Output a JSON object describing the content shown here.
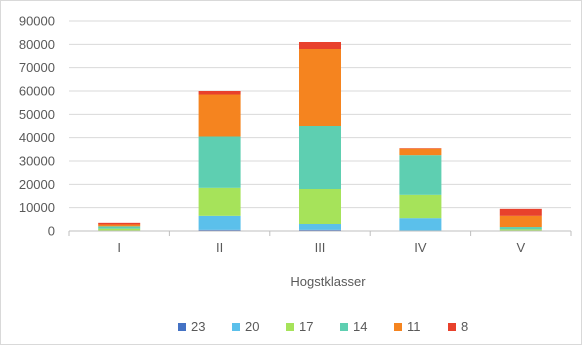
{
  "chart_data": {
    "type": "bar",
    "stacked": true,
    "categories": [
      "I",
      "II",
      "III",
      "IV",
      "V"
    ],
    "xlabel": "Hogstklasser",
    "ylabel": "",
    "title": "",
    "ylim": [
      0,
      90000
    ],
    "yticks": [
      "0",
      "10000",
      "20000",
      "30000",
      "40000",
      "50000",
      "60000",
      "70000",
      "80000",
      "90000"
    ],
    "grid": true,
    "legend_position": "bottom",
    "series": [
      {
        "name": "23",
        "color": "#4472c4",
        "values": [
          0,
          500,
          500,
          0,
          0
        ]
      },
      {
        "name": "20",
        "color": "#5bc0eb",
        "values": [
          0,
          6000,
          2500,
          5500,
          0
        ]
      },
      {
        "name": "17",
        "color": "#a6e35a",
        "values": [
          1000,
          12000,
          15000,
          10000,
          700
        ]
      },
      {
        "name": "14",
        "color": "#5ecfb1",
        "values": [
          1000,
          22000,
          27000,
          17000,
          1000
        ]
      },
      {
        "name": "11",
        "color": "#f5841f",
        "values": [
          800,
          18000,
          33000,
          2800,
          4800
        ]
      },
      {
        "name": "8",
        "color": "#e8412c",
        "values": [
          700,
          1500,
          3000,
          200,
          3000
        ]
      }
    ]
  }
}
